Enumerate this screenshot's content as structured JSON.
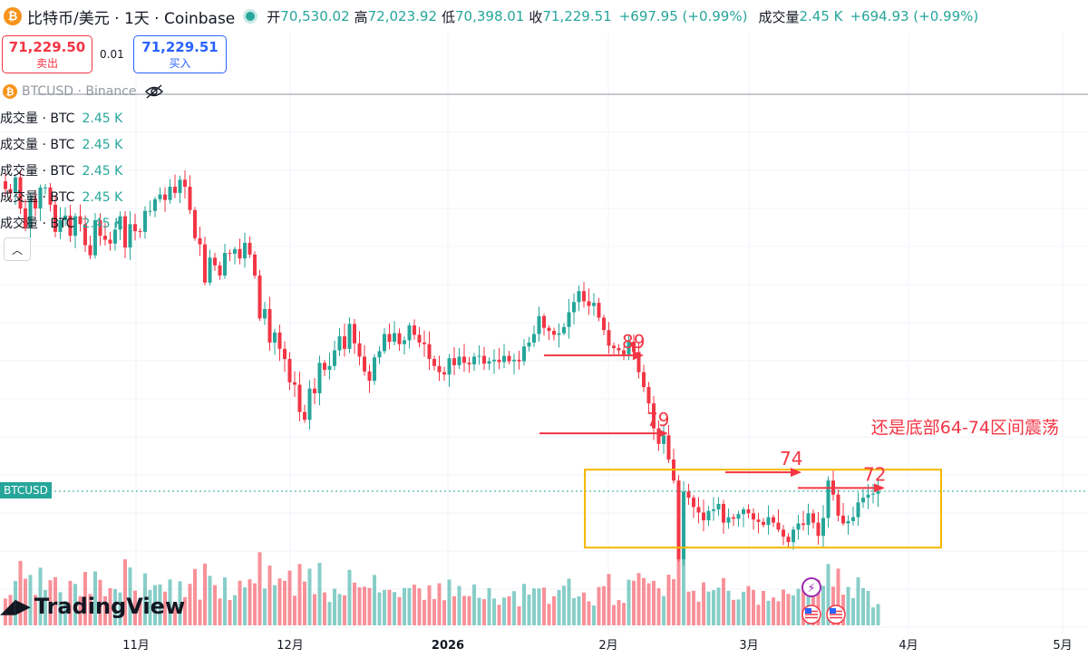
{
  "header": {
    "coin_glyph": "₿",
    "symbol": "比特币/美元 · 1天 · Coinbase",
    "open_label": "开",
    "open": "70,530.02",
    "high_label": "高",
    "high": "72,023.92",
    "low_label": "低",
    "low": "70,398.01",
    "close_label": "收",
    "close": "71,229.51",
    "change": "+697.95 (+0.99%)",
    "volume_label": "成交量",
    "volume": "2.45 K",
    "volume_change": "+694.93 (+0.99%)"
  },
  "trade": {
    "sell_price": "71,229.50",
    "sell_label": "卖出",
    "spread": "0.01",
    "buy_price": "71,229.51",
    "buy_label": "买入"
  },
  "compare_series": "BTCUSD · Binance",
  "volume_rows": [
    {
      "label": "成交量 · BTC",
      "value": "2.45 K"
    },
    {
      "label": "成交量 · BTC",
      "value": "2.45 K"
    },
    {
      "label": "成交量 · BTC",
      "value": "2.45 K"
    },
    {
      "label": "成交量 · BTC",
      "value": "2.45 K"
    },
    {
      "label": "成交量 · BTC",
      "value": "2.45 K"
    }
  ],
  "price_tag": "BTCUSD",
  "logo_text": "TradingView",
  "colors": {
    "up": "#26a69a",
    "down": "#f23645",
    "annotation": "#f23645",
    "range_box": "#f5b800"
  },
  "chart_data": {
    "type": "candlestick",
    "x_ticks": [
      "11月",
      "12月",
      "2026",
      "2月",
      "3月",
      "4月",
      "5月"
    ],
    "y_range_k": [
      56,
      112
    ],
    "annotations": [
      {
        "text": "89",
        "kind": "arrow"
      },
      {
        "text": "79",
        "kind": "arrow"
      },
      {
        "text": "74",
        "kind": "arrow"
      },
      {
        "text": "72",
        "kind": "arrow"
      },
      {
        "text": "还是底部64-74区间震荡",
        "kind": "note"
      }
    ],
    "range_box_k": [
      64,
      74
    ],
    "last_price_k": 71.23,
    "daily_closes_k": [
      110,
      109.5,
      111.5,
      107.5,
      105,
      108.8,
      107.5,
      110.2,
      110.2,
      108,
      104.5,
      106,
      106.6,
      104,
      106.5,
      105.5,
      102.8,
      101.5,
      106,
      104,
      103.5,
      103,
      104.8,
      106.5,
      102.5,
      105.5,
      104.6,
      104.5,
      107.2,
      107.2,
      108.7,
      109.3,
      108.6,
      110.3,
      109.5,
      111.2,
      110.3,
      107.3,
      103.7,
      102.9,
      98,
      101.2,
      100.2,
      98.9,
      101.8,
      101.7,
      102.3,
      101.1,
      103.1,
      101.6,
      98.9,
      93.4,
      94.6,
      90.3,
      91.6,
      89.5,
      88.2,
      85.2,
      84.9,
      81.4,
      80.4,
      84.4,
      83.8,
      87.7,
      86.8,
      87.3,
      89.3,
      91.1,
      89.5,
      92.7,
      90.2,
      88.5,
      86.6,
      85.4,
      88.4,
      89.2,
      91.4,
      90.4,
      91.5,
      90.1,
      90.6,
      92.5,
      91.3,
      90.3,
      90.1,
      88.2,
      87.3,
      86.5,
      86.2,
      88.3,
      87.4,
      88.5,
      87.7,
      87.5,
      88.5,
      88.6,
      87.6,
      87.9,
      88.1,
      87.8,
      88.6,
      87.9,
      88.1,
      87.9,
      89.8,
      90.3,
      91.4,
      93.7,
      92.2,
      91.8,
      91.3,
      91.5,
      92.3,
      94.2,
      95.5,
      96.9,
      95.6,
      95,
      95.4,
      93.5,
      91.9,
      89.9,
      89.6,
      89.3,
      88.8,
      90.4,
      89.1,
      86.5,
      84.6,
      82.5,
      79.3,
      77.3,
      78.4,
      75.3,
      72.6,
      62.5,
      71.2,
      70.4,
      69.2,
      68.5,
      67.5,
      68.7,
      68.9,
      69.6,
      67.2,
      67.9,
      67.7,
      68.3,
      68.9,
      68.4,
      67.6,
      67.3,
      66.9,
      67.9,
      67.2,
      66.3,
      65.4,
      64.7,
      66.3,
      67.1,
      66.9,
      68.4,
      67.2,
      65.5,
      67.8,
      72.6,
      70.8,
      68.1,
      67.1,
      67.4,
      67.9,
      69.8,
      70.4,
      70.8,
      70.9,
      71.23
    ]
  }
}
